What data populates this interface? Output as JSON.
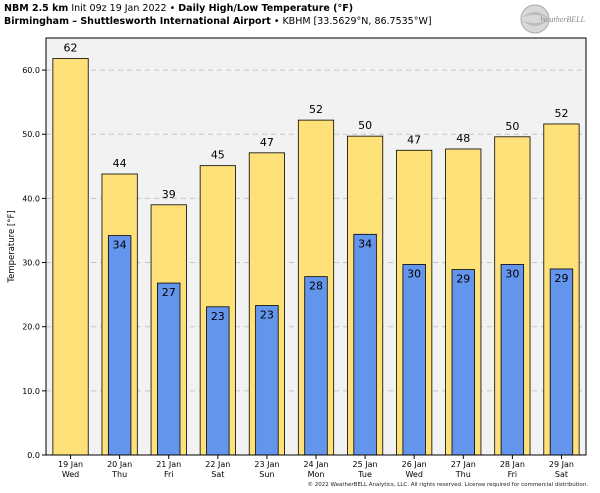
{
  "header": {
    "model": "NBM 2.5 km",
    "init": "Init 09z 19 Jan 2022",
    "sep": "•",
    "title": "Daily High/Low Temperature (°F)",
    "location": "Birmingham – Shuttlesworth International Airport",
    "station": "• KBHM [33.5629°N, 86.7535°W]"
  },
  "logo": {
    "text": "WeatherBELL",
    "icon": "globe-swirl-logo"
  },
  "copyright": "© 2022 WeatherBELL Analytics, LLC. All rights reserved. License required for commercial distribution.",
  "chart_data": {
    "type": "bar",
    "categories": [
      "19 Jan",
      "20 Jan",
      "21 Jan",
      "22 Jan",
      "23 Jan",
      "24 Jan",
      "25 Jan",
      "26 Jan",
      "27 Jan",
      "28 Jan",
      "29 Jan"
    ],
    "weekdays": [
      "Wed",
      "Thu",
      "Fri",
      "Sat",
      "Sun",
      "Mon",
      "Tue",
      "Wed",
      "Thu",
      "Fri",
      "Sat"
    ],
    "series": [
      {
        "name": "",
        "role": "high",
        "color": "#FFE17A",
        "values": [
          61.8,
          43.8,
          39.0,
          45.1,
          47.1,
          52.2,
          49.7,
          47.5,
          47.7,
          49.6,
          51.6
        ],
        "labels": [
          "62",
          "44",
          "39",
          "45",
          "47",
          "52",
          "50",
          "47",
          "48",
          "50",
          "52"
        ]
      },
      {
        "name": "",
        "role": "low",
        "color": "#6495ED",
        "values": [
          null,
          34.2,
          26.8,
          23.1,
          23.3,
          27.8,
          34.4,
          29.7,
          28.9,
          29.7,
          29.0
        ],
        "labels": [
          "",
          "34",
          "27",
          "23",
          "23",
          "28",
          "34",
          "30",
          "29",
          "30",
          "29"
        ]
      }
    ],
    "xlabel": "",
    "ylabel": "Temperature [°F]",
    "ylim": [
      0,
      65
    ],
    "yticks": [
      "0.0",
      "10.0",
      "20.0",
      "30.0",
      "40.0",
      "50.0",
      "60.0"
    ],
    "grid": true,
    "background": "#F2F2F2"
  }
}
